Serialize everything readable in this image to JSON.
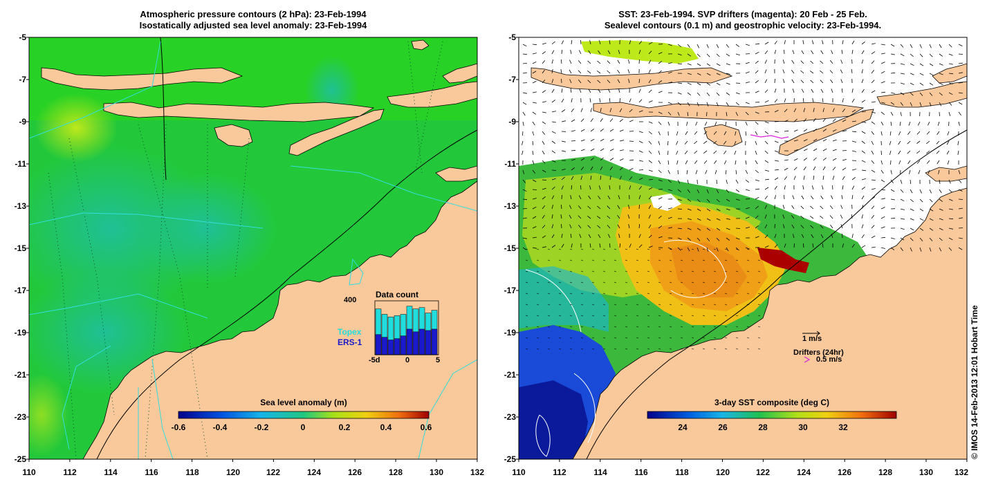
{
  "left_panel": {
    "title_line1": "Atmospheric pressure contours (2 hPa): 23-Feb-1994",
    "title_line2": "Isostatically adjusted sea level anomaly: 23-Feb-1994",
    "colorbar_label": "Sea level anomaly (m)",
    "colorbar_ticks": [
      "-0.6",
      "-0.4",
      "-0.2",
      "0",
      "0.2",
      "0.4",
      "0.6"
    ],
    "inset": {
      "title": "Data count",
      "y_label": "400",
      "x_ticks": [
        "-5d",
        "0",
        "5"
      ],
      "legend_topex": "Topex",
      "legend_ers": "ERS-1",
      "topex_color": "#22dddd",
      "ers_color": "#1a1acc",
      "bars_total": [
        340,
        300,
        280,
        290,
        300,
        360,
        340,
        350,
        310,
        330
      ],
      "bars_ers": [
        150,
        130,
        110,
        120,
        140,
        190,
        170,
        190,
        180,
        190
      ]
    }
  },
  "right_panel": {
    "title_line1": "SST: 23-Feb-1994. SVP drifters (magenta): 20 Feb - 25 Feb.",
    "title_line2": "Sealevel contours (0.1 m) and geostrophic velocity: 23-Feb-1994.",
    "colorbar_label": "3-day SST composite (deg C)",
    "colorbar_ticks": [
      "24",
      "26",
      "28",
      "30",
      "32"
    ],
    "velocity_scale_label": "1 m/s",
    "drifter_label": "Drifters (24hr)",
    "drifter_speed_label": "0.5 m/s"
  },
  "axes": {
    "y_ticks": [
      "-5",
      "-7",
      "-9",
      "-11",
      "-13",
      "-15",
      "-17",
      "-19",
      "-21",
      "-23",
      "-25"
    ],
    "x_ticks": [
      "110",
      "112",
      "114",
      "116",
      "118",
      "120",
      "122",
      "124",
      "126",
      "128",
      "130",
      "132"
    ]
  },
  "colors": {
    "land": "#f9c89b",
    "ocean_green": "#22cc22",
    "ocean_teal": "#1bc48c",
    "sst_hot": "#aa0000"
  },
  "copyright": "© IMOS 14-Feb-2013 12:01 Hobart Time"
}
